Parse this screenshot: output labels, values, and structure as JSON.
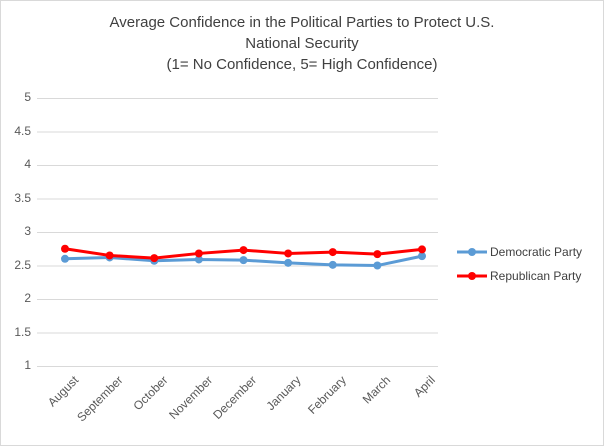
{
  "title": {
    "line1": "Average Confidence in the Political Parties to Protect U.S.",
    "line2": "National Security",
    "line3": "(1= No Confidence, 5= High Confidence)"
  },
  "chart_data": {
    "type": "line",
    "title": "Average Confidence in the Political Parties to Protect U.S. National Security (1= No Confidence, 5= High Confidence)",
    "categories": [
      "August",
      "September",
      "October",
      "November",
      "December",
      "January",
      "February",
      "March",
      "April"
    ],
    "series": [
      {
        "name": "Democratic Party",
        "color": "#5B9BD5",
        "values": [
          2.6,
          2.62,
          2.57,
          2.59,
          2.58,
          2.54,
          2.51,
          2.5,
          2.64
        ]
      },
      {
        "name": "Republican Party",
        "color": "#FF0000",
        "values": [
          2.75,
          2.65,
          2.61,
          2.68,
          2.73,
          2.68,
          2.7,
          2.67,
          2.74
        ]
      }
    ],
    "ylim": [
      1,
      5
    ],
    "ytick_step": 0.5,
    "yticks": [
      1,
      1.5,
      2,
      2.5,
      3,
      3.5,
      4,
      4.5,
      5
    ],
    "grid": true,
    "legend_position": "right",
    "xlabel": "",
    "ylabel": "",
    "marker": "circle"
  },
  "colors": {
    "gridline": "#D9D9D9",
    "axis_text": "#595959",
    "title_text": "#404040",
    "border": "#D9D9D9",
    "background": "#FFFFFF"
  }
}
